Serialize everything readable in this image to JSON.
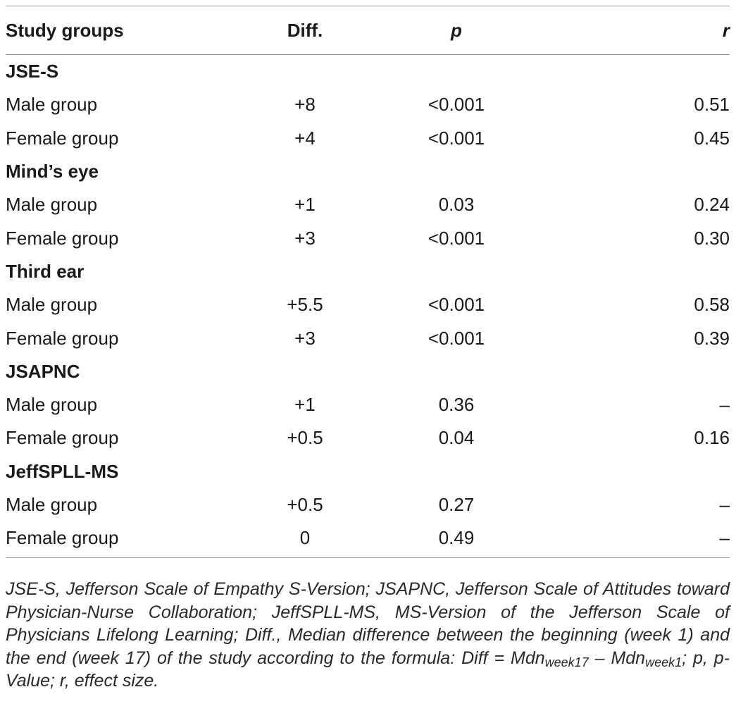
{
  "table": {
    "headers": {
      "study_groups": "Study groups",
      "diff": "Diff.",
      "p": "p",
      "r": "r"
    },
    "sections": [
      {
        "title": "JSE-S",
        "rows": [
          {
            "group": "Male group",
            "diff": "+8",
            "p": "<0.001",
            "r": "0.51"
          },
          {
            "group": "Female group",
            "diff": "+4",
            "p": "<0.001",
            "r": "0.45"
          }
        ]
      },
      {
        "title": "Mind’s eye",
        "rows": [
          {
            "group": "Male group",
            "diff": "+1",
            "p": "0.03",
            "r": "0.24"
          },
          {
            "group": "Female group",
            "diff": "+3",
            "p": "<0.001",
            "r": "0.30"
          }
        ]
      },
      {
        "title": "Third ear",
        "rows": [
          {
            "group": "Male group",
            "diff": "+5.5",
            "p": "<0.001",
            "r": "0.58"
          },
          {
            "group": "Female group",
            "diff": "+3",
            "p": "<0.001",
            "r": "0.39"
          }
        ]
      },
      {
        "title": "JSAPNC",
        "rows": [
          {
            "group": "Male group",
            "diff": "+1",
            "p": "0.36",
            "r": "–"
          },
          {
            "group": "Female group",
            "diff": "+0.5",
            "p": "0.04",
            "r": "0.16"
          }
        ]
      },
      {
        "title": "JeffSPLL-MS",
        "rows": [
          {
            "group": "Male group",
            "diff": "+0.5",
            "p": "0.27",
            "r": "–"
          },
          {
            "group": "Female group",
            "diff": "0",
            "p": "0.49",
            "r": "–"
          }
        ]
      }
    ]
  },
  "footnote": {
    "text": "JSE-S, Jefferson Scale of Empathy S-Version; JSAPNC, Jefferson Scale of Attitudes toward Physician-Nurse Collaboration; JeffSPLL-MS, MS-Version of the Jefferson Scale of Physicians Lifelong Learning; Diff., Median difference between the beginning (week 1) and the end (week 17) of the study according to the formula: Diff = Mdn",
    "sub1": "week17",
    "mid": " – Mdn",
    "sub2": "week1",
    "tail": "; p, p-Value; r, effect size."
  }
}
